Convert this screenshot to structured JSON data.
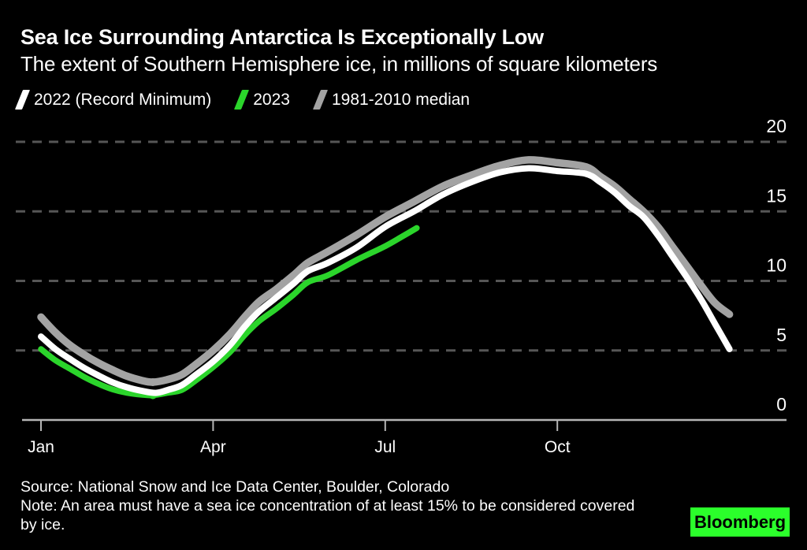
{
  "header": {
    "title": "Sea Ice Surrounding Antarctica Is Exceptionally Low",
    "subtitle": "The extent of Southern Hemisphere ice, in millions of square kilometers"
  },
  "footer": {
    "source": "Source: National Snow and Ice Data Center, Boulder, Colorado",
    "note": "Note: An area must have a sea ice concentration of at least 15% to be considered covered by ice.",
    "logo_text": "Bloomberg"
  },
  "colors": {
    "background": "#000000",
    "text": "#ffffff",
    "grid_dashed": "#565656",
    "axis_line": "#b5b5b5",
    "logo_green": "#2bff2b",
    "logo_text": "#000000"
  },
  "chart_data": {
    "type": "line",
    "title": "Sea Ice Surrounding Antarctica Is Exceptionally Low",
    "subtitle": "The extent of Southern Hemisphere ice, in millions of square kilometers",
    "unit": "millions of square kilometers",
    "legend_position": "top-left",
    "x_axis": {
      "unit": "month (0 = Jan 1, 12 = Dec 31)",
      "range": [
        0,
        12
      ],
      "ticks": [
        {
          "pos": 0,
          "label": "Jan"
        },
        {
          "pos": 3,
          "label": "Apr"
        },
        {
          "pos": 6,
          "label": "Jul"
        },
        {
          "pos": 9,
          "label": "Oct"
        }
      ]
    },
    "y_axis": {
      "range": [
        0,
        20
      ],
      "ticks": [
        0,
        5,
        10,
        15,
        20
      ],
      "grid": "dashed",
      "zero_line": "solid",
      "label_side": "right"
    },
    "series": [
      {
        "name": "2022 (Record Minimum)",
        "color": "#ffffff",
        "stroke_width": 8,
        "points": [
          [
            0,
            6.0
          ],
          [
            0.25,
            5.1
          ],
          [
            0.5,
            4.4
          ],
          [
            0.75,
            3.75
          ],
          [
            1,
            3.2
          ],
          [
            1.25,
            2.7
          ],
          [
            1.5,
            2.35
          ],
          [
            1.75,
            2.1
          ],
          [
            2,
            1.95
          ],
          [
            2.2,
            2.15
          ],
          [
            2.45,
            2.5
          ],
          [
            2.7,
            3.25
          ],
          [
            3,
            4.2
          ],
          [
            3.3,
            5.4
          ],
          [
            3.55,
            6.7
          ],
          [
            3.8,
            7.8
          ],
          [
            4.1,
            8.8
          ],
          [
            4.4,
            9.8
          ],
          [
            4.65,
            10.7
          ],
          [
            5,
            11.3
          ],
          [
            5.5,
            12.4
          ],
          [
            6,
            13.9
          ],
          [
            6.5,
            15.0
          ],
          [
            7,
            16.2
          ],
          [
            7.5,
            17.1
          ],
          [
            8,
            17.8
          ],
          [
            8.5,
            18.1
          ],
          [
            9,
            17.9
          ],
          [
            9.5,
            17.7
          ],
          [
            9.75,
            17.1
          ],
          [
            10,
            16.35
          ],
          [
            10.25,
            15.4
          ],
          [
            10.5,
            14.6
          ],
          [
            10.75,
            13.3
          ],
          [
            11,
            11.8
          ],
          [
            11.25,
            10.3
          ],
          [
            11.5,
            8.7
          ],
          [
            11.75,
            6.9
          ],
          [
            12,
            5.1
          ]
        ]
      },
      {
        "name": "2023",
        "color": "#2bd52b",
        "stroke_width": 7.5,
        "points": [
          [
            0,
            5.1
          ],
          [
            0.25,
            4.3
          ],
          [
            0.5,
            3.7
          ],
          [
            0.75,
            3.1
          ],
          [
            1,
            2.6
          ],
          [
            1.25,
            2.2
          ],
          [
            1.5,
            1.95
          ],
          [
            1.75,
            1.82
          ],
          [
            1.95,
            1.78
          ],
          [
            2.2,
            1.95
          ],
          [
            2.45,
            2.15
          ],
          [
            2.7,
            2.85
          ],
          [
            3,
            3.8
          ],
          [
            3.3,
            4.9
          ],
          [
            3.55,
            6.1
          ],
          [
            3.8,
            7.1
          ],
          [
            4.1,
            8.0
          ],
          [
            4.4,
            9.0
          ],
          [
            4.65,
            9.9
          ],
          [
            5,
            10.4
          ],
          [
            5.5,
            11.5
          ],
          [
            6,
            12.5
          ],
          [
            6.3,
            13.2
          ],
          [
            6.55,
            13.8
          ]
        ]
      },
      {
        "name": "1981-2010 median",
        "color": "#a3a3a3",
        "stroke_width": 9.5,
        "points": [
          [
            0,
            7.4
          ],
          [
            0.25,
            6.3
          ],
          [
            0.5,
            5.4
          ],
          [
            0.75,
            4.7
          ],
          [
            1,
            4.1
          ],
          [
            1.25,
            3.6
          ],
          [
            1.5,
            3.15
          ],
          [
            1.75,
            2.85
          ],
          [
            1.95,
            2.72
          ],
          [
            2.2,
            2.9
          ],
          [
            2.45,
            3.25
          ],
          [
            2.7,
            4.0
          ],
          [
            3,
            5.0
          ],
          [
            3.3,
            6.2
          ],
          [
            3.55,
            7.4
          ],
          [
            3.8,
            8.5
          ],
          [
            4.1,
            9.4
          ],
          [
            4.4,
            10.4
          ],
          [
            4.65,
            11.3
          ],
          [
            5,
            12.1
          ],
          [
            5.5,
            13.3
          ],
          [
            6,
            14.6
          ],
          [
            6.5,
            15.7
          ],
          [
            7,
            16.8
          ],
          [
            7.5,
            17.6
          ],
          [
            8,
            18.3
          ],
          [
            8.5,
            18.7
          ],
          [
            9,
            18.5
          ],
          [
            9.5,
            18.2
          ],
          [
            9.75,
            17.5
          ],
          [
            10,
            16.8
          ],
          [
            10.25,
            15.9
          ],
          [
            10.5,
            15.0
          ],
          [
            10.75,
            13.9
          ],
          [
            11,
            12.5
          ],
          [
            11.25,
            11.1
          ],
          [
            11.5,
            9.7
          ],
          [
            11.75,
            8.4
          ],
          [
            12,
            7.6
          ]
        ]
      }
    ],
    "draw_order": [
      2,
      1,
      0
    ],
    "markers": [
      {
        "series_index": 2,
        "x": 1.95,
        "y": 2.72
      },
      {
        "series_index": 1,
        "x": 1.95,
        "y": 1.78
      }
    ]
  }
}
